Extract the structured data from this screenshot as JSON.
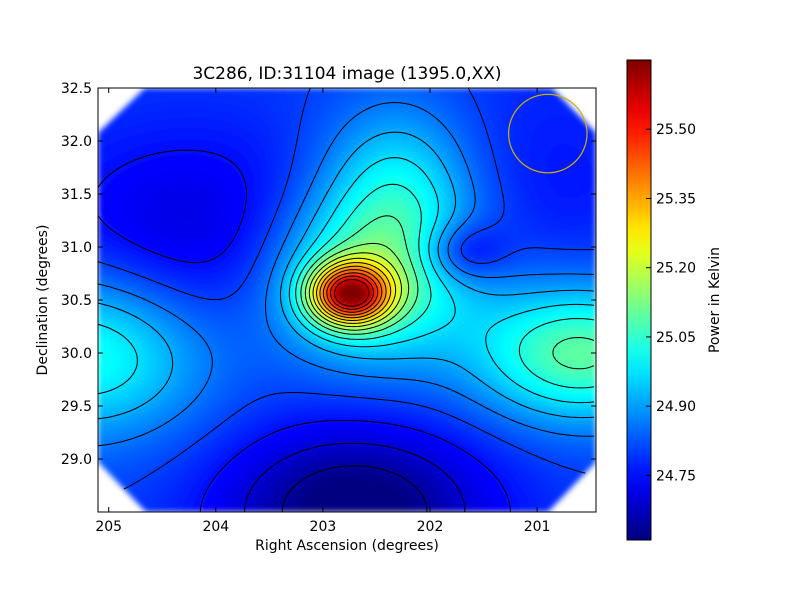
{
  "chart_data": {
    "type": "heatmap",
    "title": "3C286, ID:31104 image (1395.0,XX)",
    "xlabel": "Right Ascension (degrees)",
    "ylabel": "Declination (degrees)",
    "x_reversed": true,
    "xlim": [
      205.1,
      200.45
    ],
    "ylim": [
      28.5,
      32.5
    ],
    "x_ticks": [
      205,
      204,
      203,
      202,
      201
    ],
    "x_tick_labels": [
      "205",
      "204",
      "203",
      "202",
      "201"
    ],
    "y_ticks": [
      29.0,
      29.5,
      30.0,
      30.5,
      31.0,
      31.5,
      32.0,
      32.5
    ],
    "y_tick_labels": [
      "29.0",
      "29.5",
      "30.0",
      "30.5",
      "31.0",
      "31.5",
      "32.0",
      "32.5"
    ],
    "colorbar": {
      "label": "Power in Kelvin",
      "range": [
        24.61,
        25.65
      ],
      "ticks": [
        24.75,
        24.9,
        25.05,
        25.2,
        25.35,
        25.5
      ],
      "tick_labels": [
        "24.75",
        "24.90",
        "25.05",
        "25.20",
        "25.35",
        "25.50"
      ],
      "colormap": "jet"
    },
    "features": [
      {
        "kind": "peak",
        "ra": 202.75,
        "dec": 30.55,
        "value": 25.62
      },
      {
        "kind": "local-max",
        "ra": 200.7,
        "dec": 30.0,
        "value": 25.12
      },
      {
        "kind": "local-max",
        "ra": 204.9,
        "dec": 30.0,
        "value": 24.97
      },
      {
        "kind": "local-max",
        "ra": 202.3,
        "dec": 31.65,
        "value": 24.97
      },
      {
        "kind": "local-min",
        "ra": 202.6,
        "dec": 28.55,
        "value": 24.62
      },
      {
        "kind": "local-min",
        "ra": 204.15,
        "dec": 31.1,
        "value": 24.7
      },
      {
        "kind": "local-min",
        "ra": 201.7,
        "dec": 30.95,
        "value": 24.78
      }
    ],
    "beam_circle": {
      "ra": 200.9,
      "dec": 32.07,
      "radius_deg": 0.37,
      "color": "#c8b400"
    },
    "contour_color": "#000000"
  }
}
